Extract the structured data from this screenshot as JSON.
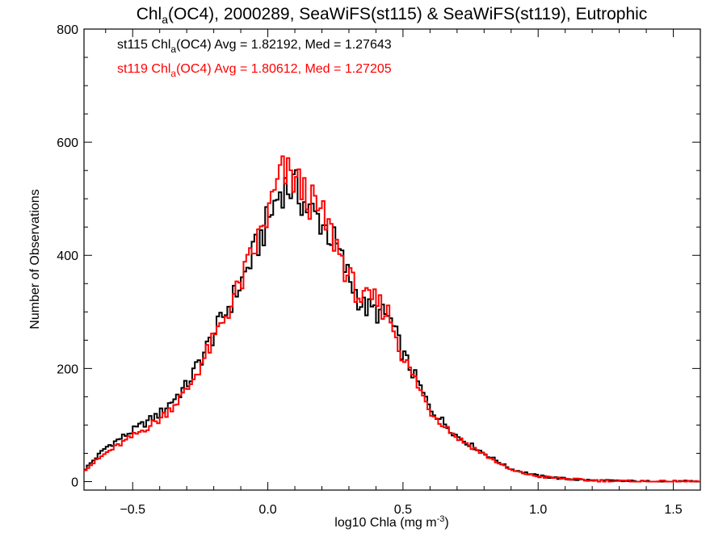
{
  "chart_data": {
    "type": "histogram",
    "title": {
      "prefix": "Chl",
      "sub": "a",
      "suffix": "(OC4), 2000289, SeaWiFS(st115) & SeaWiFS(st119), Eutrophic"
    },
    "xlabel": {
      "prefix": "log10 Chla (mg m",
      "sup": "-3",
      "suffix": ")"
    },
    "ylabel": "Number of Observations",
    "xlim": [
      -0.68,
      1.6
    ],
    "ylim": [
      -15,
      800
    ],
    "xticks": [
      -0.5,
      0.0,
      0.5,
      1.0,
      1.5
    ],
    "xtick_labels": [
      "−0.5",
      "0.0",
      "0.5",
      "1.0",
      "1.5"
    ],
    "yticks": [
      0,
      200,
      400,
      600,
      800
    ],
    "ytick_labels": [
      "0",
      "200",
      "400",
      "600",
      "800"
    ],
    "legend": [
      {
        "prefix": "st115 Chl",
        "sub": "a",
        "suffix": "(OC4) Avg = 1.82192, Med = 1.27643",
        "color": "#000000"
      },
      {
        "prefix": "st119 Chl",
        "sub": "a",
        "suffix": "(OC4) Avg = 1.80612, Med = 1.27205",
        "color": "#ff0000"
      }
    ],
    "series": [
      {
        "color": "#000000",
        "points": [
          [
            -0.68,
            20
          ],
          [
            -0.6,
            60
          ],
          [
            -0.5,
            90
          ],
          [
            -0.4,
            120
          ],
          [
            -0.3,
            170
          ],
          [
            -0.2,
            260
          ],
          [
            -0.1,
            350
          ],
          [
            0.0,
            460
          ],
          [
            0.05,
            520
          ],
          [
            0.1,
            520
          ],
          [
            0.15,
            480
          ],
          [
            0.2,
            460
          ],
          [
            0.25,
            420
          ],
          [
            0.3,
            360
          ],
          [
            0.35,
            310
          ],
          [
            0.4,
            300
          ],
          [
            0.45,
            290
          ],
          [
            0.5,
            225
          ],
          [
            0.55,
            180
          ],
          [
            0.6,
            130
          ],
          [
            0.7,
            80
          ],
          [
            0.8,
            50
          ],
          [
            0.9,
            22
          ],
          [
            1.0,
            10
          ],
          [
            1.1,
            5
          ],
          [
            1.2,
            2
          ],
          [
            1.3,
            1
          ],
          [
            1.4,
            0
          ],
          [
            1.5,
            0
          ],
          [
            1.6,
            0
          ]
        ]
      },
      {
        "color": "#ff0000",
        "points": [
          [
            -0.68,
            20
          ],
          [
            -0.6,
            50
          ],
          [
            -0.5,
            80
          ],
          [
            -0.4,
            110
          ],
          [
            -0.3,
            160
          ],
          [
            -0.2,
            250
          ],
          [
            -0.1,
            350
          ],
          [
            0.0,
            470
          ],
          [
            0.05,
            545
          ],
          [
            0.1,
            535
          ],
          [
            0.15,
            500
          ],
          [
            0.2,
            470
          ],
          [
            0.25,
            425
          ],
          [
            0.3,
            360
          ],
          [
            0.35,
            320
          ],
          [
            0.4,
            320
          ],
          [
            0.45,
            295
          ],
          [
            0.5,
            220
          ],
          [
            0.55,
            175
          ],
          [
            0.6,
            125
          ],
          [
            0.7,
            78
          ],
          [
            0.8,
            48
          ],
          [
            0.9,
            20
          ],
          [
            1.0,
            9
          ],
          [
            1.1,
            5
          ],
          [
            1.2,
            2
          ],
          [
            1.3,
            1
          ],
          [
            1.4,
            0
          ],
          [
            1.5,
            0
          ],
          [
            1.6,
            0
          ]
        ]
      }
    ],
    "bin_width": 0.01
  }
}
